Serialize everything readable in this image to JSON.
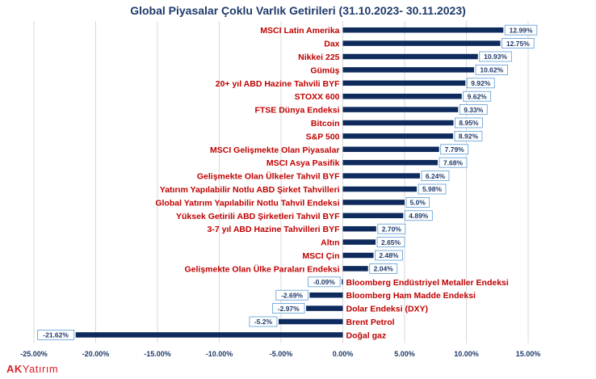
{
  "chart_data": {
    "type": "bar",
    "orientation": "horizontal",
    "title": "Global Piyasalar Çoklu Varlık Getirileri (31.10.2023- 30.11.2023)",
    "categories": [
      "MSCI Latin Amerika",
      "Dax",
      "Nikkei 225",
      "Gümüş",
      "20+ yıl ABD Hazine Tahvili BYF",
      "STOXX 600",
      "FTSE Dünya Endeksi",
      "Bitcoin",
      "S&P 500",
      "MSCI Gelişmekte Olan Piyasalar",
      "MSCI Asya Pasifik",
      "Gelişmekte Olan Ülkeler Tahvil BYF",
      "Yatırım Yapılabilir Notlu  ABD Şirket Tahvilleri",
      "Global Yatırım Yapılabilir Notlu Tahvil Endeksi",
      "Yüksek Getirili ABD Şirketleri Tahvil BYF",
      "3-7 yıl ABD Hazine Tahvilleri BYF",
      "Altın",
      "MSCI Çin",
      "Gelişmekte Olan Ülke Paraları Endeksi",
      "Bloomberg Endüstriyel Metaller Endeksi",
      "Bloomberg Ham Madde Endeksi",
      "Dolar Endeksi (DXY)",
      "Brent Petrol",
      "Doğal gaz"
    ],
    "values": [
      12.99,
      12.75,
      10.93,
      10.62,
      9.92,
      9.62,
      9.33,
      8.95,
      8.92,
      7.79,
      7.68,
      6.24,
      5.98,
      5.0,
      4.89,
      2.7,
      2.65,
      2.48,
      2.04,
      -0.09,
      -2.69,
      -2.97,
      -5.2,
      -21.62
    ],
    "data_labels": [
      "12.99%",
      "12.75%",
      "10.93%",
      "10.62%",
      "9.92%",
      "9.62%",
      "9.33%",
      "8.95%",
      "8.92%",
      "7.79%",
      "7.68%",
      "6.24%",
      "5.98%",
      "5.0%",
      "4.89%",
      "2.70%",
      "2.65%",
      "2.48%",
      "2.04%",
      "-0.09%",
      "-2.69%",
      "-2.97%",
      "-5.2%",
      "-21.62%"
    ],
    "xlim": [
      -25,
      15
    ],
    "xticks": [
      -25,
      -20,
      -15,
      -10,
      -5,
      0,
      5,
      10,
      15
    ],
    "xtick_labels": [
      "-25.00%",
      "-20.00%",
      "-15.00%",
      "-10.00%",
      "-5.00%",
      "0.00%",
      "5.00%",
      "10.00%",
      "15.00%"
    ],
    "xlabel": "",
    "ylabel": "",
    "grid": true,
    "legend": "none",
    "colors": {
      "bar": "#0f2a5c",
      "category_label": "#c00000",
      "title": "#1f3b6b",
      "data_label_border": "#5b9bd5",
      "data_label_text": "#1f3b6b",
      "gridline": "#d9d9d9"
    }
  },
  "brand": {
    "prefix": "AK",
    "suffix": "Yatırım"
  }
}
